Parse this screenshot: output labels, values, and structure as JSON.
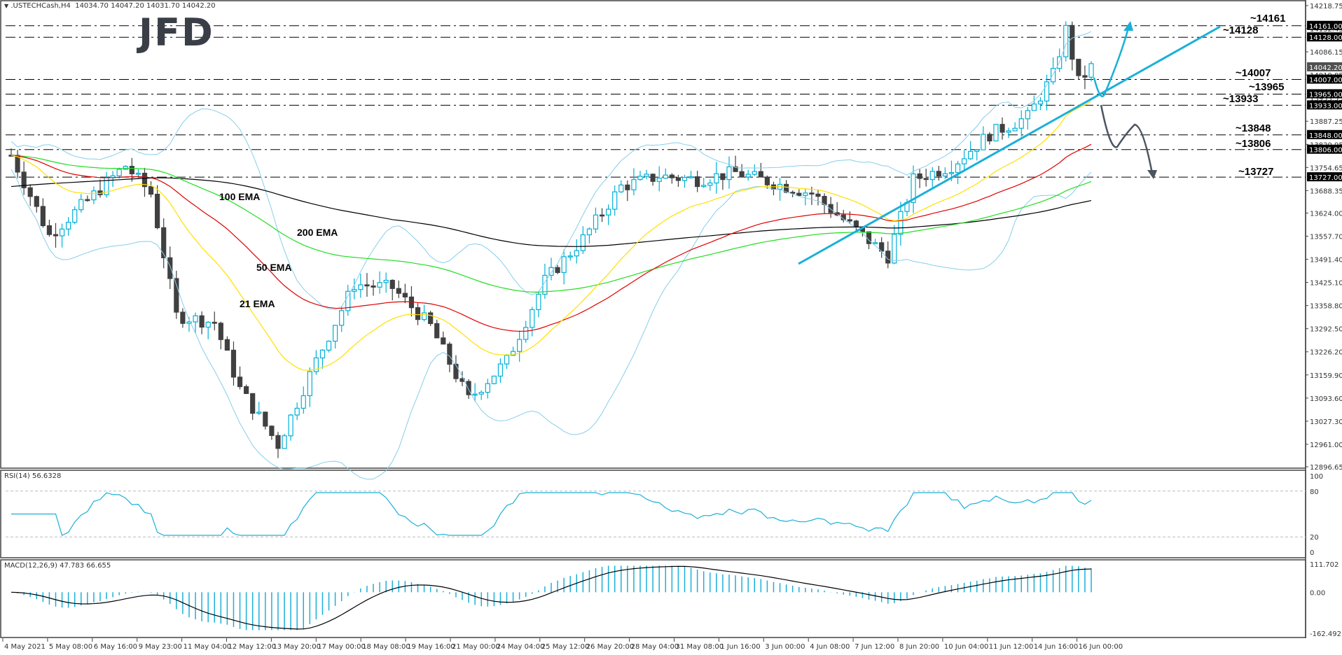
{
  "header": {
    "symbol": ".USTECHCash,H4",
    "ohlc": "14034.70 14047.20 14031.70 14042.20",
    "menu_icon": "triangle-down-icon"
  },
  "logo": {
    "text": "JFD"
  },
  "colors": {
    "bull": "#00b0d8",
    "bear": "#404040",
    "ema21": "#ffe000",
    "ema50": "#e00000",
    "ema100": "#22dd22",
    "ema200": "#000000",
    "bollinger": "#87ceeb",
    "trendline": "#1ab0d8",
    "arrow_down": "#4a5560",
    "level_cyan": "#1ab0d8",
    "level_gray": "#4a5560"
  },
  "ema_labels": [
    {
      "text": "100 EMA",
      "color": "#22dd22"
    },
    {
      "text": "200 EMA",
      "color": "#000000"
    },
    {
      "text": "50 EMA",
      "color": "#e00000"
    },
    {
      "text": "21 EMA",
      "color": "#ffd000"
    }
  ],
  "level_labels": [
    {
      "text": "~14161",
      "color": "#1ab0d8"
    },
    {
      "text": "~14128",
      "color": "#1ab0d8"
    },
    {
      "text": "~14007",
      "color": "#1ab0d8"
    },
    {
      "text": "~13965",
      "color": "#1ab0d8"
    },
    {
      "text": "~13933",
      "color": "#4a5560"
    },
    {
      "text": "~13848",
      "color": "#4a5560"
    },
    {
      "text": "~13806",
      "color": "#4a5560"
    },
    {
      "text": "~13727",
      "color": "#4a5560"
    }
  ],
  "rsi": {
    "title": "RSI(14) 56.6328",
    "levels": [
      "100",
      "80",
      "20",
      "0"
    ]
  },
  "macd": {
    "title": "MACD(12,26,9) 47.783 66.655",
    "levels": [
      "111.702",
      "0.00",
      "-162.492"
    ]
  },
  "chart_data": {
    "type": "candlestick",
    "title": ".USTECHCash,H4",
    "ylim": [
      12896.65,
      14218.75
    ],
    "y_ticks": [
      "14218.75",
      "14152.45",
      "14086.15",
      "14019.85",
      "13953.55",
      "13887.25",
      "13820.95",
      "13754.65",
      "13688.35",
      "13624.00",
      "13557.70",
      "13491.40",
      "13425.10",
      "13358.80",
      "13292.50",
      "13226.20",
      "13159.90",
      "13093.60",
      "13027.30",
      "12961.00",
      "12896.65"
    ],
    "price_tags": [
      {
        "value": 14161.0,
        "label": "14161.00",
        "style": "level"
      },
      {
        "value": 14128.0,
        "label": "14128.00",
        "style": "level"
      },
      {
        "value": 14042.2,
        "label": "14042.20",
        "style": "current"
      },
      {
        "value": 14007.0,
        "label": "14007.00",
        "style": "level"
      },
      {
        "value": 13965.0,
        "label": "13965.00",
        "style": "level"
      },
      {
        "value": 13933.0,
        "label": "13933.00",
        "style": "level"
      },
      {
        "value": 13848.0,
        "label": "13848.00",
        "style": "level"
      },
      {
        "value": 13806.0,
        "label": "13806.00",
        "style": "level"
      },
      {
        "value": 13727.0,
        "label": "13727.00",
        "style": "level"
      }
    ],
    "x_labels": [
      "4 May 2021",
      "5 May 08:00",
      "6 May 16:00",
      "9 May 23:00",
      "11 May 04:00",
      "12 May 12:00",
      "13 May 20:00",
      "17 May 00:00",
      "18 May 08:00",
      "19 May 16:00",
      "21 May 00:00",
      "24 May 04:00",
      "25 May 12:00",
      "26 May 20:00",
      "28 May 04:00",
      "31 May 08:00",
      "1 Jun 16:00",
      "3 Jun 00:00",
      "4 Jun 08:00",
      "7 Jun 12:00",
      "8 Jun 20:00",
      "10 Jun 04:00",
      "11 Jun 12:00",
      "14 Jun 16:00",
      "16 Jun 00:00"
    ],
    "series": [
      {
        "name": "21 EMA",
        "color": "#ffe000"
      },
      {
        "name": "50 EMA",
        "color": "#e00000"
      },
      {
        "name": "100 EMA",
        "color": "#22dd22"
      },
      {
        "name": "200 EMA",
        "color": "#000000"
      },
      {
        "name": "Bollinger Bands",
        "color": "#87ceeb"
      }
    ],
    "key_levels": [
      14161,
      14128,
      14007,
      13965,
      13933,
      13848,
      13806,
      13727
    ],
    "last_close": 14042.2,
    "rsi_last": 56.6328,
    "macd_last": [
      47.783,
      66.655
    ],
    "rsi_range": [
      0,
      100
    ],
    "macd_range": [
      -162.492,
      111.702
    ]
  }
}
